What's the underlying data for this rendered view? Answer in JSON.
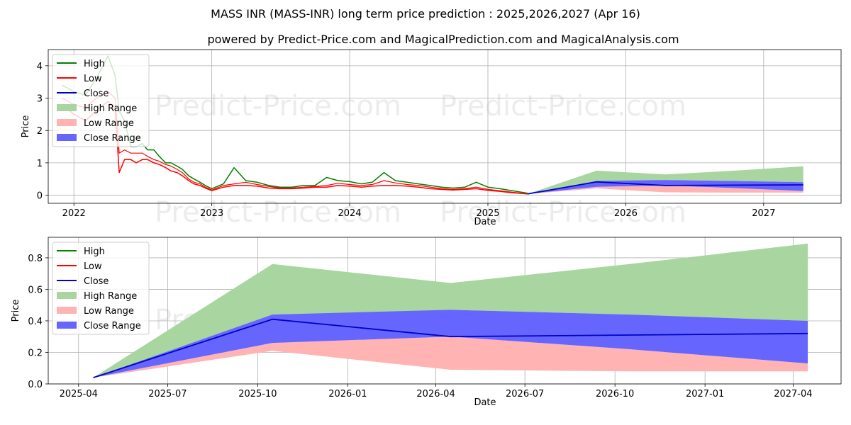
{
  "title": "MASS INR (MASS-INR) long term price prediction : 2025,2026,2027 (Apr 16)",
  "subtitle": "powered by Predict-Price.com and MagicalPrediction.com and MagicalAnalysis.com",
  "watermark": "Predict-Price.com",
  "colors": {
    "high": "#008000",
    "low": "#ff0000",
    "close": "#0000cc",
    "high_range": "#a8d5a0",
    "low_range": "#ffb3b3",
    "close_range": "#6666ff"
  },
  "chart_data": [
    {
      "type": "line",
      "xlabel": "Date",
      "ylabel": "Price",
      "xlim": [
        "2021-10-25",
        "2027-07-25"
      ],
      "ylim": [
        -0.25,
        4.5
      ],
      "x_ticks": [
        "2022",
        "2023",
        "2024",
        "2025",
        "2026",
        "2027"
      ],
      "y_ticks": [
        "0",
        "1",
        "2",
        "3",
        "4"
      ],
      "grid": true,
      "legend_position": "upper-left",
      "legend": [
        "High",
        "Low",
        "Close",
        "High Range",
        "Low Range",
        "Close Range"
      ],
      "history": {
        "x": [
          "2021-12-01",
          "2022-01-01",
          "2022-02-01",
          "2022-03-01",
          "2022-04-01",
          "2022-04-20",
          "2022-05-01",
          "2022-05-15",
          "2022-06-01",
          "2022-06-15",
          "2022-07-01",
          "2022-07-15",
          "2022-08-01",
          "2022-08-15",
          "2022-09-01",
          "2022-09-15",
          "2022-10-01",
          "2022-10-15",
          "2022-11-01",
          "2022-11-15",
          "2022-12-01",
          "2022-12-15",
          "2023-01-01",
          "2023-02-01",
          "2023-03-01",
          "2023-04-01",
          "2023-05-01",
          "2023-06-01",
          "2023-07-01",
          "2023-08-01",
          "2023-09-01",
          "2023-10-01",
          "2023-11-01",
          "2023-12-01",
          "2024-01-01",
          "2024-02-01",
          "2024-03-01",
          "2024-04-01",
          "2024-05-01",
          "2024-06-01",
          "2024-07-01",
          "2024-08-01",
          "2024-09-01",
          "2024-10-01",
          "2024-11-01",
          "2024-12-01",
          "2025-01-01",
          "2025-02-01",
          "2025-03-01",
          "2025-04-16"
        ],
        "high": [
          3.4,
          3.2,
          3.1,
          3.6,
          4.3,
          3.7,
          2.6,
          2.3,
          1.5,
          1.5,
          1.6,
          1.4,
          1.4,
          1.2,
          1.0,
          1.0,
          0.9,
          0.8,
          0.6,
          0.5,
          0.4,
          0.3,
          0.2,
          0.35,
          0.85,
          0.45,
          0.4,
          0.3,
          0.25,
          0.25,
          0.3,
          0.3,
          0.55,
          0.45,
          0.42,
          0.35,
          0.4,
          0.7,
          0.45,
          0.4,
          0.35,
          0.3,
          0.25,
          0.22,
          0.25,
          0.4,
          0.25,
          0.2,
          0.15,
          0.06
        ],
        "low": [
          2.8,
          2.5,
          2.3,
          2.6,
          2.9,
          2.7,
          0.7,
          1.1,
          1.1,
          1.0,
          1.1,
          1.1,
          1.0,
          0.95,
          0.85,
          0.75,
          0.7,
          0.6,
          0.45,
          0.35,
          0.3,
          0.22,
          0.14,
          0.25,
          0.3,
          0.3,
          0.28,
          0.22,
          0.2,
          0.2,
          0.22,
          0.25,
          0.25,
          0.3,
          0.28,
          0.25,
          0.28,
          0.3,
          0.3,
          0.28,
          0.25,
          0.2,
          0.18,
          0.16,
          0.18,
          0.2,
          0.15,
          0.12,
          0.08,
          0.04
        ],
        "close": [
          3.0,
          2.8,
          2.7,
          3.0,
          3.2,
          3.0,
          1.3,
          1.4,
          1.3,
          1.3,
          1.3,
          1.2,
          1.1,
          1.05,
          0.95,
          0.9,
          0.8,
          0.7,
          0.5,
          0.4,
          0.35,
          0.25,
          0.16,
          0.3,
          0.35,
          0.4,
          0.33,
          0.27,
          0.22,
          0.22,
          0.25,
          0.27,
          0.3,
          0.37,
          0.33,
          0.3,
          0.33,
          0.45,
          0.38,
          0.33,
          0.3,
          0.25,
          0.2,
          0.18,
          0.2,
          0.25,
          0.18,
          0.14,
          0.1,
          0.04
        ]
      },
      "forecast": {
        "x": [
          "2025-04-16",
          "2025-10-16",
          "2026-04-16",
          "2026-10-16",
          "2027-04-16"
        ],
        "close": [
          0.04,
          0.41,
          0.3,
          0.31,
          0.32
        ],
        "high_range": {
          "lower": [
            0.04,
            0.41,
            0.47,
            0.44,
            0.4
          ],
          "upper": [
            0.04,
            0.76,
            0.64,
            0.76,
            0.89
          ]
        },
        "low_range": {
          "lower": [
            0.04,
            0.21,
            0.09,
            0.08,
            0.08
          ],
          "upper": [
            0.04,
            0.26,
            0.3,
            0.22,
            0.13
          ]
        },
        "close_range": {
          "lower": [
            0.04,
            0.26,
            0.3,
            0.22,
            0.13
          ],
          "upper": [
            0.04,
            0.44,
            0.47,
            0.44,
            0.4
          ]
        }
      }
    },
    {
      "type": "line",
      "xlabel": "Date",
      "ylabel": "Price",
      "xlim": [
        "2025-03-01",
        "2027-05-20"
      ],
      "ylim": [
        0,
        0.93
      ],
      "x_ticks": [
        "2025-04",
        "2025-07",
        "2025-10",
        "2026-01",
        "2026-04",
        "2026-07",
        "2026-10",
        "2027-01",
        "2027-04"
      ],
      "y_ticks": [
        "0.0",
        "0.2",
        "0.4",
        "0.6",
        "0.8"
      ],
      "grid": true,
      "legend_position": "upper-left",
      "legend": [
        "High",
        "Low",
        "Close",
        "High Range",
        "Low Range",
        "Close Range"
      ],
      "forecast": {
        "x": [
          "2025-04-16",
          "2025-10-16",
          "2026-04-16",
          "2026-10-16",
          "2027-04-16"
        ],
        "close": [
          0.04,
          0.41,
          0.3,
          0.31,
          0.32
        ],
        "high_range": {
          "lower": [
            0.04,
            0.41,
            0.47,
            0.44,
            0.4
          ],
          "upper": [
            0.04,
            0.76,
            0.64,
            0.76,
            0.89
          ]
        },
        "low_range": {
          "lower": [
            0.04,
            0.21,
            0.09,
            0.08,
            0.08
          ],
          "upper": [
            0.04,
            0.26,
            0.3,
            0.22,
            0.13
          ]
        },
        "close_range": {
          "lower": [
            0.04,
            0.26,
            0.3,
            0.22,
            0.13
          ],
          "upper": [
            0.04,
            0.44,
            0.47,
            0.44,
            0.4
          ]
        }
      }
    }
  ]
}
